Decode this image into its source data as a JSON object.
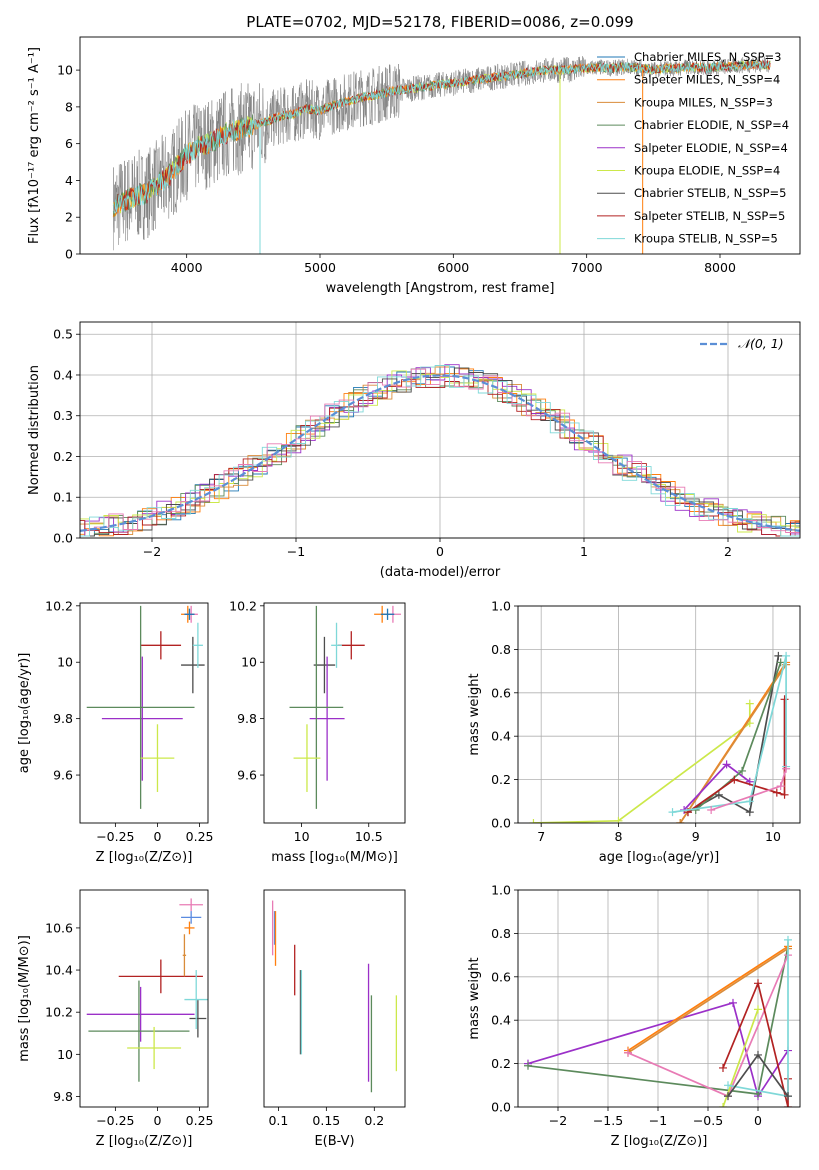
{
  "title": "PLATE=0702, MJD=52178, FIBERID=0086, z=0.099",
  "colors": {
    "chabrier_miles": "#1f77b4",
    "salpeter_miles": "#ff7f0e",
    "kroupa_miles": "#d98c3a",
    "chabrier_elodie": "#5c8a5c",
    "salpeter_elodie": "#9b30c8",
    "kroupa_elodie": "#cce84a",
    "chabrier_stelib": "#4d4d4d",
    "salpeter_stelib": "#b22222",
    "kroupa_stelib": "#7fd8d8",
    "data": "#808080",
    "normal": "#5b8fd6",
    "pink": "#e87bb5",
    "blue": "#5a8be0"
  },
  "chart_data": [
    {
      "id": "spectrum",
      "type": "line",
      "xlabel": "wavelength [Angstrom, rest frame]",
      "ylabel": "Flux [fλ10⁻¹⁷ erg cm⁻² s⁻¹ A⁻¹]",
      "xlim": [
        3200,
        8600
      ],
      "ylim": [
        0,
        11.8
      ],
      "xticks": [
        4000,
        5000,
        6000,
        7000,
        8000
      ],
      "yticks": [
        0,
        2,
        4,
        6,
        8,
        10
      ],
      "legend_position": "top-right",
      "legend": [
        "Chabrier MILES, N_SSP=3",
        "Salpeter MILES, N_SSP=4",
        "Kroupa MILES, N_SSP=3",
        "Chabrier ELODIE, N_SSP=4",
        "Salpeter ELODIE, N_SSP=4",
        "Kroupa ELODIE, N_SSP=4",
        "Chabrier STELIB, N_SSP=5",
        "Salpeter STELIB, N_SSP=5",
        "Kroupa STELIB, N_SSP=5"
      ],
      "continuum": {
        "x": [
          3450,
          3600,
          3700,
          3800,
          3900,
          4000,
          4100,
          4200,
          4300,
          4400,
          4500,
          4600,
          4700,
          4800,
          4900,
          5000,
          5100,
          5200,
          5300,
          5400,
          5500,
          5600,
          5700,
          5800,
          5900,
          6000,
          6100,
          6200,
          6300,
          6400,
          6500,
          6600,
          6700,
          6800,
          6900,
          7000,
          7100,
          7200,
          7300,
          7400,
          7500,
          7600,
          7700,
          7800,
          7900,
          8000,
          8100,
          8200,
          8300,
          8380
        ],
        "y": [
          2.6,
          3.1,
          3.3,
          3.9,
          4.5,
          5.4,
          5.9,
          6.1,
          6.6,
          6.8,
          7.0,
          7.2,
          7.5,
          7.6,
          7.9,
          7.8,
          8.1,
          8.3,
          8.5,
          8.6,
          8.8,
          8.9,
          9.0,
          9.1,
          9.2,
          9.3,
          9.4,
          9.5,
          9.6,
          9.7,
          9.8,
          9.9,
          10.0,
          10.0,
          10.05,
          10.1,
          10.15,
          10.1,
          10.2,
          10.1,
          10.0,
          10.1,
          10.1,
          10.2,
          10.1,
          10.2,
          10.2,
          10.3,
          10.3,
          10.3
        ]
      }
    },
    {
      "id": "residuals",
      "type": "line",
      "xlabel": "(data-model)/error",
      "ylabel": "Normed distribution",
      "xlim": [
        -2.5,
        2.5
      ],
      "ylim": [
        0,
        0.53
      ],
      "xticks": [
        -2,
        -1,
        0,
        1,
        2
      ],
      "yticks": [
        0.0,
        0.1,
        0.2,
        0.3,
        0.4,
        0.5
      ],
      "legend": [
        "𝒩(0, 1)"
      ],
      "legend_position": "top-right",
      "grid": true
    },
    {
      "id": "age_vs_Z",
      "type": "scatter",
      "xlabel": "Z [log₁₀(Z/Z⊙)]",
      "ylabel": "age  [log₁₀(age/yr)]",
      "xlim": [
        -0.46,
        0.3
      ],
      "ylim": [
        9.43,
        10.21
      ],
      "xticks": [
        -0.25,
        0.0,
        0.25
      ],
      "yticks": [
        9.6,
        9.8,
        10.0,
        10.2
      ],
      "points": [
        {
          "c": "salpeter_stelib",
          "x": 0.02,
          "y": 10.06,
          "xe": 0.12,
          "ye": 0.05
        },
        {
          "c": "chabrier_stelib",
          "x": 0.21,
          "y": 9.99,
          "xe": 0.07,
          "ye": 0.1
        },
        {
          "c": "salpeter_elodie",
          "x": -0.09,
          "y": 9.8,
          "xe": 0.24,
          "ye": 0.22
        },
        {
          "c": "chabrier_elodie",
          "x": -0.1,
          "y": 9.84,
          "xe": 0.32,
          "ye": 0.36
        },
        {
          "c": "kroupa_elodie",
          "x": 0.0,
          "y": 9.66,
          "xe": 0.1,
          "ye": 0.12
        },
        {
          "c": "kroupa_stelib",
          "x": 0.24,
          "y": 10.06,
          "xe": 0.03,
          "ye": 0.08
        },
        {
          "c": "salpeter_miles",
          "x": 0.18,
          "y": 10.17,
          "xe": 0.04,
          "ye": 0.03
        },
        {
          "c": "pink",
          "x": 0.2,
          "y": 10.17,
          "xe": 0.04,
          "ye": 0.03
        },
        {
          "c": "chabrier_miles",
          "x": 0.19,
          "y": 10.17,
          "xe": 0.03,
          "ye": 0.02
        }
      ]
    },
    {
      "id": "age_vs_mass",
      "type": "scatter",
      "xlabel": "mass [log₁₀(M/M⊙)]",
      "ylabel": "",
      "xlim": [
        9.72,
        10.77
      ],
      "ylim": [
        9.43,
        10.21
      ],
      "xticks": [
        10.0,
        10.5
      ],
      "yticks": [
        9.6,
        9.8,
        10.0,
        10.2
      ],
      "points": [
        {
          "c": "salpeter_stelib",
          "x": 10.37,
          "y": 10.06,
          "xe": 0.1,
          "ye": 0.05
        },
        {
          "c": "chabrier_stelib",
          "x": 10.17,
          "y": 9.99,
          "xe": 0.08,
          "ye": 0.1
        },
        {
          "c": "salpeter_elodie",
          "x": 10.19,
          "y": 9.8,
          "xe": 0.13,
          "ye": 0.22
        },
        {
          "c": "chabrier_elodie",
          "x": 10.11,
          "y": 9.84,
          "xe": 0.2,
          "ye": 0.36
        },
        {
          "c": "kroupa_elodie",
          "x": 10.04,
          "y": 9.66,
          "xe": 0.1,
          "ye": 0.12
        },
        {
          "c": "kroupa_stelib",
          "x": 10.26,
          "y": 10.06,
          "xe": 0.04,
          "ye": 0.08
        },
        {
          "c": "salpeter_miles",
          "x": 10.6,
          "y": 10.17,
          "xe": 0.06,
          "ye": 0.03
        },
        {
          "c": "pink",
          "x": 10.68,
          "y": 10.17,
          "xe": 0.06,
          "ye": 0.03
        },
        {
          "c": "chabrier_miles",
          "x": 10.64,
          "y": 10.17,
          "xe": 0.05,
          "ye": 0.02
        }
      ]
    },
    {
      "id": "weight_vs_age",
      "type": "line",
      "xlabel": "age  [log₁₀(age/yr)]",
      "ylabel": "mass weight",
      "xlim": [
        6.7,
        10.35
      ],
      "ylim": [
        0,
        1.0
      ],
      "xticks": [
        7,
        8,
        9,
        10
      ],
      "yticks": [
        0.0,
        0.2,
        0.4,
        0.6,
        0.8,
        1.0
      ],
      "grid": true,
      "series": [
        {
          "c": "kroupa_elodie",
          "x": [
            6.9,
            8.0,
            9.7,
            9.7
          ],
          "y": [
            0.0,
            0.01,
            0.46,
            0.55
          ]
        },
        {
          "c": "salpeter_miles",
          "x": [
            8.8,
            10.17
          ],
          "y": [
            0.0,
            0.74
          ]
        },
        {
          "c": "kroupa_miles",
          "x": [
            8.8,
            10.17
          ],
          "y": [
            0.0,
            0.73
          ]
        },
        {
          "c": "chabrier_stelib",
          "x": [
            8.9,
            9.3,
            9.7,
            10.07
          ],
          "y": [
            0.05,
            0.13,
            0.05,
            0.77
          ]
        },
        {
          "c": "salpeter_elodie",
          "x": [
            8.85,
            9.4,
            9.7
          ],
          "y": [
            0.06,
            0.27,
            0.19
          ]
        },
        {
          "c": "chabrier_elodie",
          "x": [
            9.0,
            9.6,
            10.1
          ],
          "y": [
            0.06,
            0.24,
            0.74
          ]
        },
        {
          "c": "salpeter_stelib",
          "x": [
            8.9,
            9.5,
            10.05,
            10.15,
            10.15
          ],
          "y": [
            0.05,
            0.2,
            0.14,
            0.13,
            0.57
          ]
        },
        {
          "c": "kroupa_stelib",
          "x": [
            8.7,
            9.7,
            10.17,
            10.17
          ],
          "y": [
            0.05,
            0.1,
            0.77,
            0.26
          ]
        },
        {
          "c": "pink",
          "x": [
            9.2,
            10.1,
            10.17
          ],
          "y": [
            0.06,
            0.17,
            0.25
          ]
        }
      ]
    },
    {
      "id": "mass_vs_Z",
      "type": "scatter",
      "xlabel": "Z [log₁₀(Z/Z⊙)]",
      "ylabel": "mass [log₁₀(M/M⊙)]",
      "xlim": [
        -0.46,
        0.3
      ],
      "ylim": [
        9.75,
        10.78
      ],
      "xticks": [
        -0.25,
        0.0,
        0.25
      ],
      "yticks": [
        9.8,
        10.0,
        10.2,
        10.4,
        10.6
      ],
      "points": [
        {
          "c": "salpeter_stelib",
          "x": 0.02,
          "y": 10.37,
          "xe": 0.25,
          "ye": 0.08
        },
        {
          "c": "chabrier_stelib",
          "x": 0.24,
          "y": 10.17,
          "xe": 0.05,
          "ye": 0.09
        },
        {
          "c": "salpeter_elodie",
          "x": -0.1,
          "y": 10.19,
          "xe": 0.32,
          "ye": 0.13
        },
        {
          "c": "chabrier_elodie",
          "x": -0.11,
          "y": 10.11,
          "xe": 0.3,
          "ye": 0.24
        },
        {
          "c": "kroupa_elodie",
          "x": -0.02,
          "y": 10.03,
          "xe": 0.16,
          "ye": 0.1
        },
        {
          "c": "kroupa_stelib",
          "x": 0.23,
          "y": 10.26,
          "xe": 0.07,
          "ye": 0.14
        },
        {
          "c": "pink",
          "x": 0.2,
          "y": 10.71,
          "xe": 0.07,
          "ye": 0.03
        },
        {
          "c": "blue",
          "x": 0.2,
          "y": 10.65,
          "xe": 0.06,
          "ye": 0.03
        },
        {
          "c": "salpeter_miles",
          "x": 0.19,
          "y": 10.6,
          "xe": 0.03,
          "ye": 0.03
        },
        {
          "c": "kroupa_miles",
          "x": 0.16,
          "y": 10.47,
          "xe": 0.01,
          "ye": 0.1
        }
      ]
    },
    {
      "id": "mass_vs_ebv",
      "type": "scatter",
      "xlabel": "E(B-V)",
      "ylabel": "",
      "xlim": [
        0.085,
        0.232
      ],
      "ylim": [
        9.75,
        10.78
      ],
      "xticks": [
        0.1,
        0.15,
        0.2
      ],
      "points": [
        {
          "c": "pink",
          "x": 0.094,
          "y": 10.6,
          "ye": 0.13
        },
        {
          "c": "blue",
          "x": 0.096,
          "y": 10.6,
          "ye": 0.08
        },
        {
          "c": "salpeter_miles",
          "x": 0.097,
          "y": 10.55,
          "ye": 0.13
        },
        {
          "c": "salpeter_stelib",
          "x": 0.117,
          "y": 10.4,
          "ye": 0.12
        },
        {
          "c": "chabrier_stelib",
          "x": 0.123,
          "y": 10.2,
          "ye": 0.2
        },
        {
          "c": "kroupa_stelib",
          "x": 0.124,
          "y": 10.2,
          "ye": 0.2
        },
        {
          "c": "salpeter_elodie",
          "x": 0.194,
          "y": 10.15,
          "ye": 0.28
        },
        {
          "c": "chabrier_elodie",
          "x": 0.197,
          "y": 10.05,
          "ye": 0.23
        },
        {
          "c": "kroupa_elodie",
          "x": 0.223,
          "y": 10.1,
          "ye": 0.18
        }
      ]
    },
    {
      "id": "weight_vs_Z",
      "type": "line",
      "xlabel": "Z [log₁₀(Z/Z⊙)]",
      "ylabel": "mass weight",
      "xlim": [
        -2.4,
        0.42
      ],
      "ylim": [
        0,
        1.0
      ],
      "xticks": [
        -2.0,
        -1.5,
        -1.0,
        -0.5,
        0.0
      ],
      "yticks": [
        0.0,
        0.2,
        0.4,
        0.6,
        0.8,
        1.0
      ],
      "grid": true,
      "series": [
        {
          "c": "salpeter_elodie",
          "x": [
            -2.3,
            -0.25,
            0.0,
            0.3
          ],
          "y": [
            0.2,
            0.48,
            0.05,
            0.26
          ]
        },
        {
          "c": "chabrier_elodie",
          "x": [
            -2.3,
            0.0,
            0.3
          ],
          "y": [
            0.19,
            0.06,
            0.74
          ]
        },
        {
          "c": "salpeter_miles",
          "x": [
            -1.3,
            0.3
          ],
          "y": [
            0.26,
            0.74
          ]
        },
        {
          "c": "kroupa_miles",
          "x": [
            -1.3,
            0.3
          ],
          "y": [
            0.25,
            0.73
          ]
        },
        {
          "c": "pink",
          "x": [
            -1.3,
            -0.3,
            0.3
          ],
          "y": [
            0.25,
            0.05,
            0.7
          ]
        },
        {
          "c": "salpeter_stelib",
          "x": [
            -0.35,
            0.0,
            0.3,
            0.3
          ],
          "y": [
            0.18,
            0.57,
            0.0,
            0.13
          ]
        },
        {
          "c": "kroupa_elodie",
          "x": [
            -0.35,
            0.0
          ],
          "y": [
            0.0,
            0.45
          ]
        },
        {
          "c": "kroupa_stelib",
          "x": [
            -0.3,
            0.3,
            0.3
          ],
          "y": [
            0.1,
            0.05,
            0.77
          ]
        },
        {
          "c": "chabrier_stelib",
          "x": [
            -0.3,
            0.0,
            0.3
          ],
          "y": [
            0.05,
            0.24,
            0.05
          ]
        }
      ]
    }
  ]
}
